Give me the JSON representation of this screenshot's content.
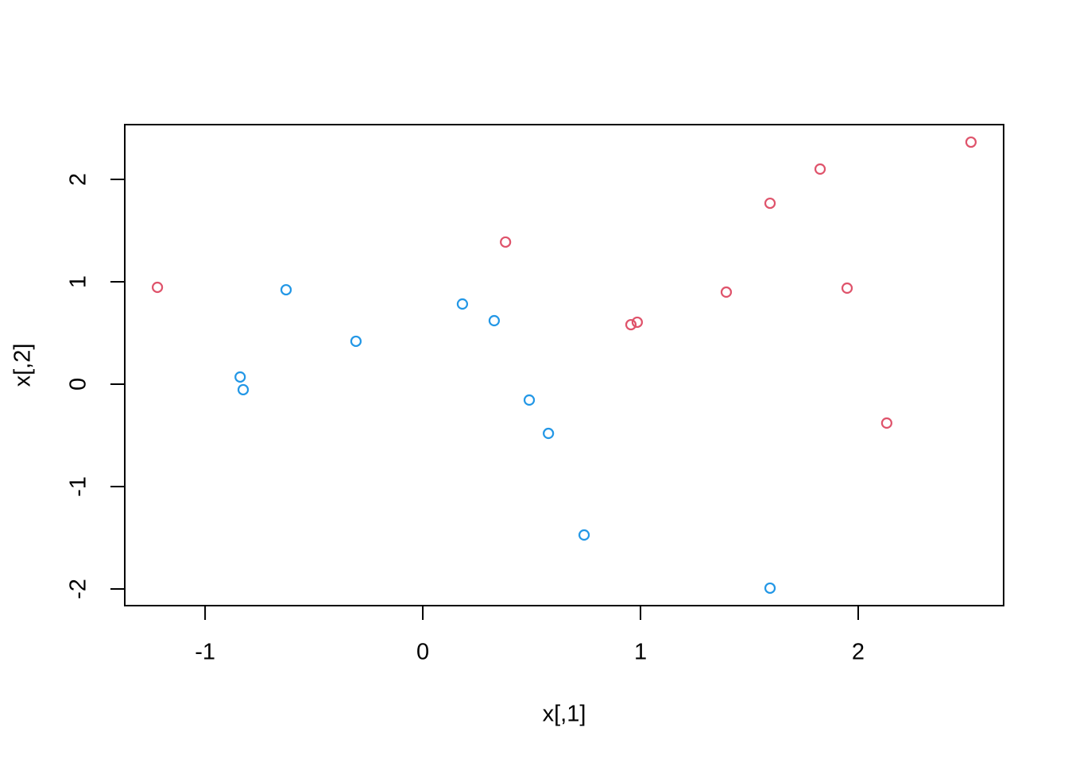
{
  "chart_data": {
    "type": "scatter",
    "x_label": "x[,1]",
    "y_label": "x[,2]",
    "xlim": [
      -1.369,
      2.668
    ],
    "ylim": [
      -2.163,
      2.535
    ],
    "xticks": [
      -1,
      0,
      1,
      2
    ],
    "yticks": [
      -2,
      -1,
      0,
      1,
      2
    ],
    "series": [
      {
        "color": "#DF536B",
        "x": [
          -1.219,
          0.38,
          0.956,
          0.985,
          1.394,
          1.595,
          1.825,
          1.949,
          2.131,
          2.518
        ],
        "values": [
          0.946,
          1.388,
          0.581,
          0.605,
          0.899,
          1.767,
          2.101,
          0.938,
          -0.38,
          2.364
        ]
      },
      {
        "color": "#2297E6",
        "x": [
          -0.839,
          -0.825,
          -0.628,
          -0.307,
          0.182,
          0.328,
          0.489,
          0.577,
          0.741,
          1.595
        ],
        "values": [
          0.07,
          -0.054,
          0.922,
          0.419,
          0.783,
          0.62,
          -0.155,
          -0.481,
          -1.473,
          -1.992
        ]
      }
    ]
  }
}
